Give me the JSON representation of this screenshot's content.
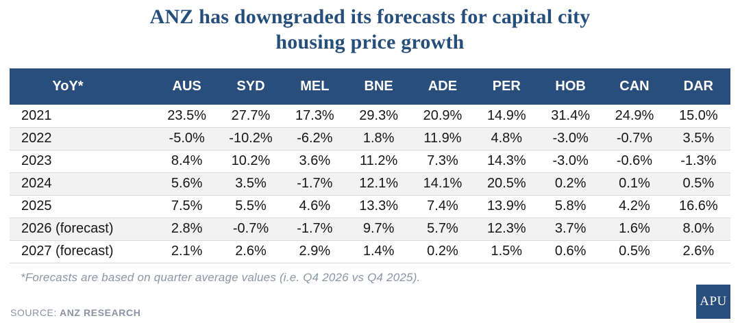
{
  "title_lines": [
    "ANZ has downgraded its forecasts for capital city",
    "housing price growth"
  ],
  "chart_data": {
    "type": "table",
    "title": "ANZ has downgraded its forecasts for capital city housing price growth",
    "columns": [
      "YoY*",
      "AUS",
      "SYD",
      "MEL",
      "BNE",
      "ADE",
      "PER",
      "HOB",
      "CAN",
      "DAR"
    ],
    "rows": [
      {
        "label": "2021",
        "values": [
          "23.5%",
          "27.7%",
          "17.3%",
          "29.3%",
          "20.9%",
          "14.9%",
          "31.4%",
          "24.9%",
          "15.0%"
        ]
      },
      {
        "label": "2022",
        "values": [
          "-5.0%",
          "-10.2%",
          "-6.2%",
          "1.8%",
          "11.9%",
          "4.8%",
          "-3.0%",
          "-0.7%",
          "3.5%"
        ]
      },
      {
        "label": "2023",
        "values": [
          "8.4%",
          "10.2%",
          "3.6%",
          "11.2%",
          "7.3%",
          "14.3%",
          "-3.0%",
          "-0.6%",
          "-1.3%"
        ]
      },
      {
        "label": "2024",
        "values": [
          "5.6%",
          "3.5%",
          "-1.7%",
          "12.1%",
          "14.1%",
          "20.5%",
          "0.2%",
          "0.1%",
          "0.5%"
        ]
      },
      {
        "label": "2025",
        "values": [
          "7.5%",
          "5.5%",
          "4.6%",
          "13.3%",
          "7.4%",
          "13.9%",
          "5.8%",
          "4.2%",
          "16.6%"
        ]
      },
      {
        "label": "2026 (forecast)",
        "values": [
          "2.8%",
          "-0.7%",
          "-1.7%",
          "9.7%",
          "5.7%",
          "12.3%",
          "3.7%",
          "1.6%",
          "8.0%"
        ]
      },
      {
        "label": "2027 (forecast)",
        "values": [
          "2.1%",
          "2.6%",
          "2.9%",
          "1.4%",
          "0.2%",
          "1.5%",
          "0.6%",
          "0.5%",
          "2.6%"
        ]
      }
    ]
  },
  "footnote": "*Forecasts are based on quarter average values (i.e. Q4 2026 vs Q4 2025).",
  "source": {
    "label": "SOURCE:",
    "value": "ANZ RESEARCH"
  },
  "logo_text": "APU",
  "colors": {
    "header_bg": "#2a4e7c",
    "title_text": "#254e7b",
    "row_alt_bg": "#f2f2f2",
    "row_border": "#d9d9d9",
    "body_text": "#161616",
    "muted_text": "#8b95a5"
  }
}
